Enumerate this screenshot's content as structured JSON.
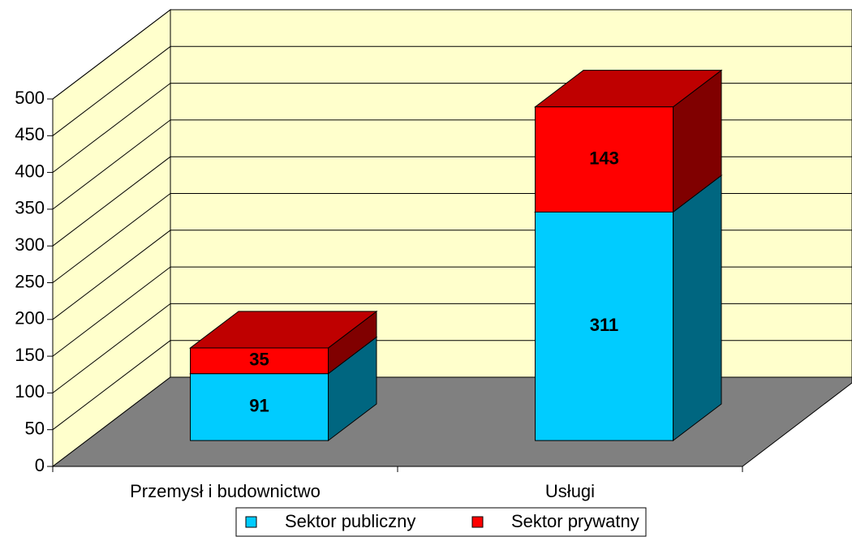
{
  "chart_data": {
    "type": "bar",
    "stacked": true,
    "categories": [
      "Przemysł i budownictwo",
      "Usługi"
    ],
    "series": [
      {
        "name": "Sektor publiczny",
        "color": "#00ccff",
        "values": [
          91,
          311
        ]
      },
      {
        "name": "Sektor prywatny",
        "color": "#ff0000",
        "values": [
          35,
          143
        ]
      }
    ],
    "ylim": [
      0,
      500
    ],
    "yticks": [
      0,
      50,
      100,
      150,
      200,
      250,
      300,
      350,
      400,
      450,
      500
    ],
    "grid": true,
    "legend": "bottom"
  }
}
